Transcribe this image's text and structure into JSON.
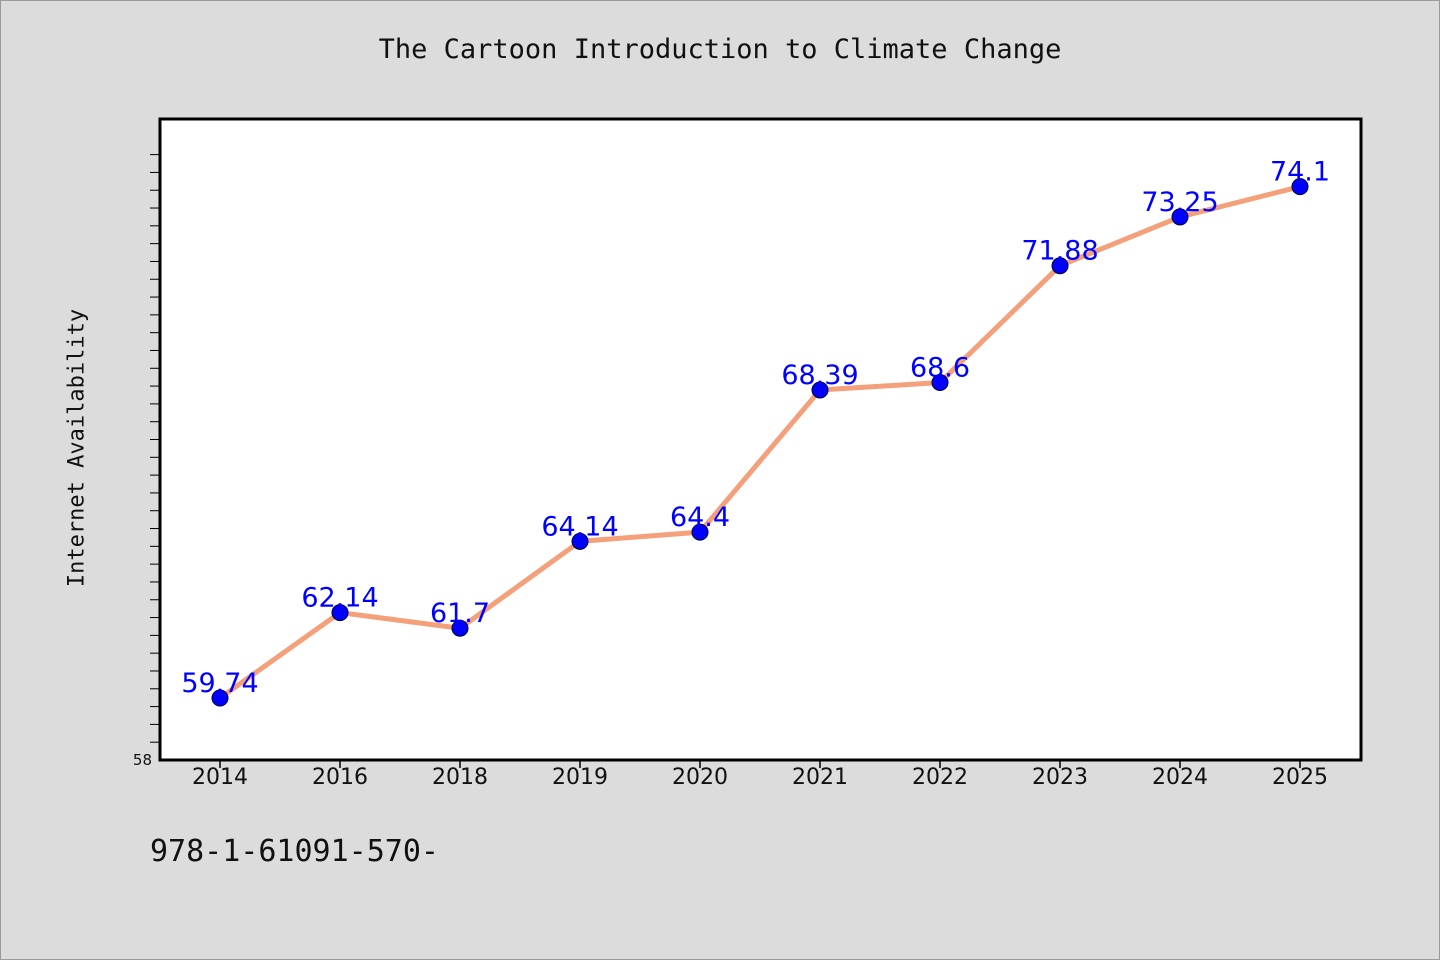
{
  "chart_data": {
    "type": "line",
    "title": "The Cartoon Introduction to Climate Change",
    "xlabel": "",
    "ylabel": "Internet Availability",
    "categories": [
      "2014",
      "2016",
      "2018",
      "2019",
      "2020",
      "2021",
      "2022",
      "2023",
      "2024",
      "2025"
    ],
    "series": [
      {
        "values": [
          59.74,
          62.14,
          61.7,
          64.14,
          64.4,
          68.39,
          68.6,
          71.88,
          73.25,
          74.1
        ],
        "labels": [
          "59.74",
          "62.14",
          "61.7",
          "64.14",
          "64.4",
          "68.39",
          "68.6",
          "71.88",
          "73.25",
          "74.1"
        ],
        "line_color": "#f4a07a",
        "marker_color": "#0000ff"
      }
    ],
    "ylim": [
      58,
      76
    ],
    "y_tick_labels": [
      "58"
    ],
    "grid": false,
    "legend": "none",
    "background": "#dcdcdc",
    "plot_background": "#ffffff",
    "label_color": "#0000ff"
  },
  "footer": {
    "isbn_text": "978-1-61091-570-"
  }
}
